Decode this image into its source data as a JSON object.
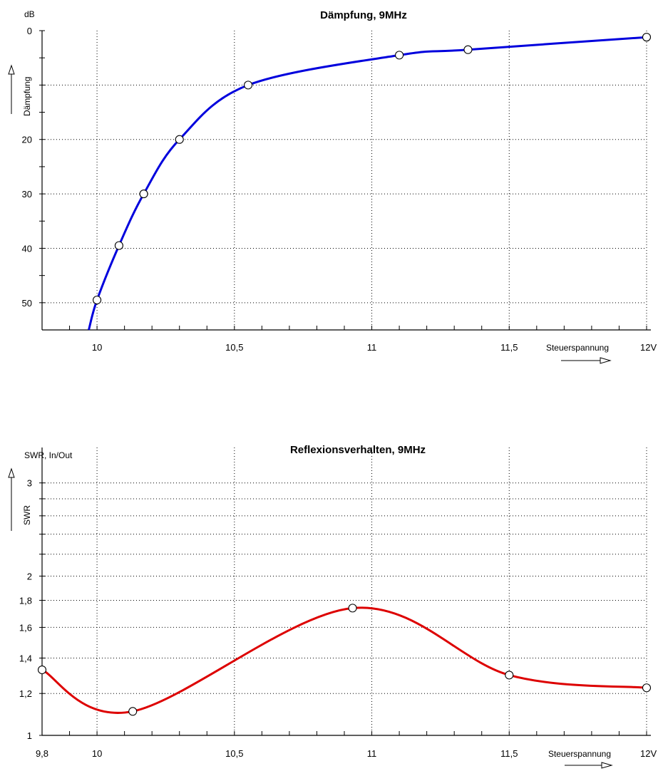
{
  "chart_data": [
    {
      "type": "line",
      "title": "Dämpfung, 9MHz",
      "unit_label": "dB",
      "ylabel": "Dämpfung",
      "xlabel": "Steuerspannung",
      "x_end_label": "12V",
      "x_tick_labels": [
        "10",
        "10,5",
        "11",
        "11,5"
      ],
      "x_tick_values": [
        10,
        10.5,
        11,
        11.5
      ],
      "y_tick_labels": [
        "0",
        "20",
        "30",
        "40",
        "50"
      ],
      "y_tick_values": [
        0,
        20,
        30,
        40,
        50
      ],
      "xlim": [
        9.8,
        12
      ],
      "ylim": [
        55,
        0
      ],
      "y_inverted": true,
      "grid": true,
      "color": "#0000dd",
      "series": [
        {
          "points": [
            {
              "x": 10.0,
              "y": 49.5
            },
            {
              "x": 10.08,
              "y": 39.5
            },
            {
              "x": 10.17,
              "y": 30
            },
            {
              "x": 10.3,
              "y": 20
            },
            {
              "x": 10.55,
              "y": 10
            },
            {
              "x": 11.1,
              "y": 4.5
            },
            {
              "x": 11.35,
              "y": 3.5
            },
            {
              "x": 12.0,
              "y": 1.2
            }
          ]
        }
      ]
    },
    {
      "type": "line",
      "title": "Reflexionsverhalten, 9MHz",
      "unit_label": "SWR, In/Out",
      "ylabel": "SWR",
      "xlabel": "Steuerspannung",
      "x_end_label": "12V",
      "x_tick_labels": [
        "9,8",
        "10",
        "10,5",
        "11",
        "11,5"
      ],
      "x_tick_values": [
        9.8,
        10,
        10.5,
        11,
        11.5
      ],
      "y_tick_labels": [
        "1",
        "1,2",
        "1,4",
        "1,6",
        "1,8",
        "2",
        "3"
      ],
      "y_tick_values": [
        1,
        1.2,
        1.4,
        1.6,
        1.8,
        2,
        3
      ],
      "y_scale": "log",
      "xlim": [
        9.8,
        12
      ],
      "ylim": [
        1,
        3.5
      ],
      "grid": true,
      "color": "#dd0000",
      "series": [
        {
          "points": [
            {
              "x": 9.8,
              "y": 1.33
            },
            {
              "x": 10.13,
              "y": 1.11
            },
            {
              "x": 10.93,
              "y": 1.74
            },
            {
              "x": 11.5,
              "y": 1.3
            },
            {
              "x": 12.0,
              "y": 1.23
            }
          ]
        }
      ]
    }
  ]
}
